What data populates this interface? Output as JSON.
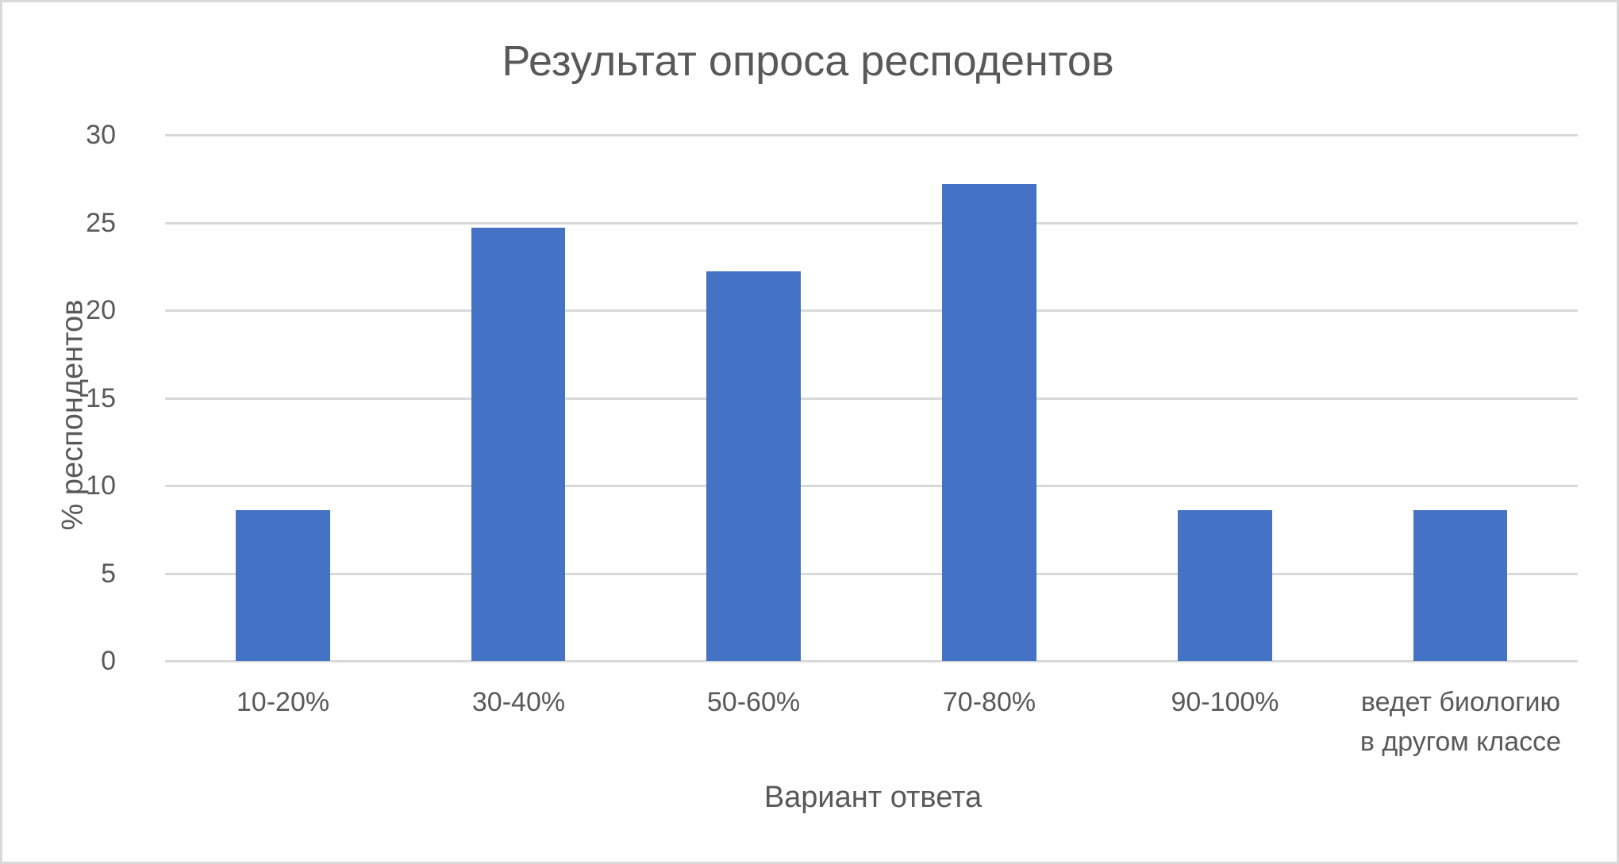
{
  "chart_data": {
    "type": "bar",
    "title": "Результат опроса респодентов",
    "xlabel": "Вариант ответа",
    "ylabel": "% респондентов",
    "categories": [
      "10-20%",
      "30-40%",
      "50-60%",
      "70-80%",
      "90-100%",
      "ведет биологию в другом классе"
    ],
    "category_lines": [
      [
        "10-20%"
      ],
      [
        "30-40%"
      ],
      [
        "50-60%"
      ],
      [
        "70-80%"
      ],
      [
        "90-100%"
      ],
      [
        "ведет биологию",
        "в другом классе"
      ]
    ],
    "values": [
      8.6,
      24.7,
      22.2,
      27.2,
      8.6,
      8.6
    ],
    "ylim": [
      0,
      30
    ],
    "yticks": [
      0,
      5,
      10,
      15,
      20,
      25,
      30
    ],
    "grid": true,
    "legend": null,
    "bar_color": "#4472c4",
    "grid_color": "#d9d9d9",
    "text_color": "#595959"
  }
}
